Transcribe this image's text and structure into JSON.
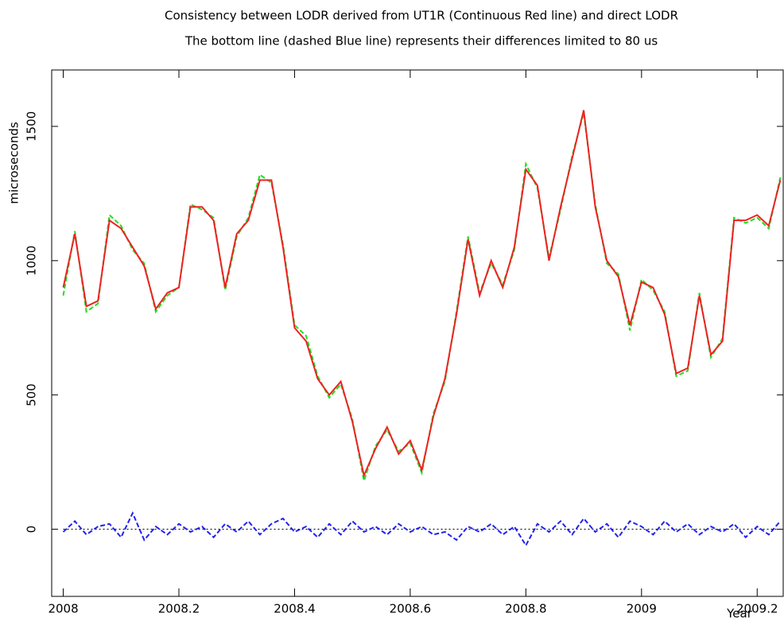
{
  "chart_data": {
    "type": "line",
    "title": "Consistency between LODR derived from UT1R (Continuous Red line) and direct LODR",
    "subtitle": "The bottom line (dashed Blue line) represents their differences limited to 80 us",
    "x_label": "Year",
    "y_label": "microseconds",
    "xlim": [
      2007.98,
      2009.245
    ],
    "ylim": [
      -250,
      1710
    ],
    "xticks": [
      2008,
      2008.2,
      2008.4,
      2008.6,
      2008.8,
      2009,
      2009.2
    ],
    "yticks": [
      0,
      500,
      1000,
      1500
    ],
    "hline": 0,
    "x": [
      2008.0,
      2008.02,
      2008.04,
      2008.06,
      2008.08,
      2008.1,
      2008.12,
      2008.14,
      2008.16,
      2008.18,
      2008.2,
      2008.22,
      2008.24,
      2008.26,
      2008.28,
      2008.3,
      2008.32,
      2008.34,
      2008.36,
      2008.38,
      2008.4,
      2008.42,
      2008.44,
      2008.46,
      2008.48,
      2008.5,
      2008.52,
      2008.54,
      2008.56,
      2008.58,
      2008.6,
      2008.62,
      2008.64,
      2008.66,
      2008.68,
      2008.7,
      2008.72,
      2008.74,
      2008.76,
      2008.78,
      2008.8,
      2008.82,
      2008.84,
      2008.86,
      2008.88,
      2008.9,
      2008.92,
      2008.94,
      2008.96,
      2008.98,
      2009.0,
      2009.02,
      2009.04,
      2009.06,
      2009.08,
      2009.1,
      2009.12,
      2009.14,
      2009.16,
      2009.18,
      2009.2,
      2009.22,
      2009.24
    ],
    "series": [
      {
        "color": "#22dd22",
        "dashed": true,
        "values": [
          870,
          1110,
          810,
          840,
          1170,
          1130,
          1040,
          990,
          810,
          870,
          900,
          1210,
          1190,
          1160,
          890,
          1090,
          1160,
          1320,
          1290,
          1060,
          760,
          720,
          570,
          490,
          540,
          410,
          180,
          310,
          370,
          290,
          320,
          210,
          430,
          550,
          810,
          1090,
          880,
          990,
          910,
          1040,
          1360,
          1270,
          1010,
          1190,
          1390,
          1550,
          1210,
          990,
          950,
          740,
          930,
          890,
          810,
          570,
          590,
          880,
          640,
          710,
          1160,
          1140,
          1160,
          1120,
          1310
        ]
      },
      {
        "color": "#ee2222",
        "dashed": false,
        "values": [
          900,
          1100,
          830,
          850,
          1150,
          1120,
          1050,
          980,
          820,
          880,
          900,
          1200,
          1200,
          1150,
          900,
          1100,
          1150,
          1300,
          1300,
          1050,
          750,
          700,
          560,
          500,
          550,
          400,
          200,
          300,
          380,
          280,
          330,
          220,
          420,
          560,
          800,
          1080,
          870,
          1000,
          900,
          1050,
          1340,
          1280,
          1000,
          1200,
          1380,
          1560,
          1200,
          1000,
          940,
          760,
          920,
          900,
          800,
          580,
          600,
          870,
          650,
          700,
          1150,
          1150,
          1170,
          1130,
          1300
        ]
      },
      {
        "color": "#2222ee",
        "dashed": true,
        "values": [
          -10,
          30,
          -20,
          10,
          20,
          -30,
          60,
          -40,
          10,
          -20,
          20,
          -10,
          10,
          -30,
          20,
          -10,
          30,
          -20,
          20,
          40,
          -10,
          10,
          -30,
          20,
          -20,
          30,
          -10,
          10,
          -20,
          20,
          -10,
          10,
          -20,
          -10,
          -40,
          10,
          -10,
          20,
          -20,
          10,
          -60,
          20,
          -10,
          30,
          -20,
          40,
          -10,
          20,
          -30,
          30,
          10,
          -20,
          30,
          -10,
          20,
          -20,
          10,
          -10,
          20,
          -30,
          10,
          -20,
          30
        ]
      }
    ]
  }
}
